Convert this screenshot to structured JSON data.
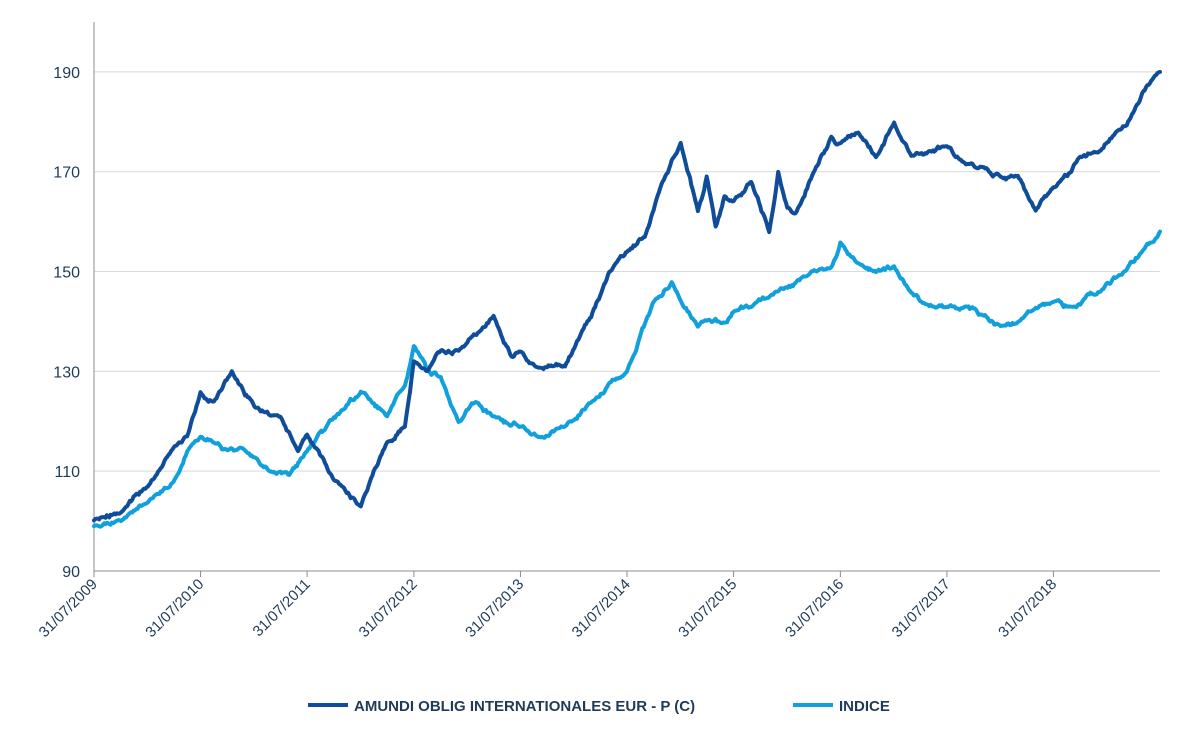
{
  "chart_data": {
    "type": "line",
    "title": "",
    "xlabel": "",
    "ylabel": "",
    "ylim": [
      90,
      200
    ],
    "y_ticks": [
      "90",
      "110",
      "130",
      "150",
      "170",
      "190"
    ],
    "x_ticks": [
      "31/07/2009",
      "31/07/2010",
      "31/07/2011",
      "31/07/2012",
      "31/07/2013",
      "31/07/2014",
      "31/07/2015",
      "31/07/2016",
      "31/07/2017",
      "31/07/2018"
    ],
    "x_range": [
      "2009-07-31",
      "2019-07-31"
    ],
    "grid": "horizontal",
    "legend_position": "bottom",
    "colors": {
      "series1": "#0f4c99",
      "series2": "#11a0dc",
      "axis": "#8c8c8c",
      "grid": "#d9d9d9",
      "text": "#1f3b57"
    },
    "series": [
      {
        "name": "AMUNDI OBLIG INTERNATIONALES EUR - P (C)",
        "x": [
          "2009-07-31",
          "2009-10-31",
          "2010-01-31",
          "2010-04-30",
          "2010-06-15",
          "2010-07-31",
          "2010-09-15",
          "2010-11-15",
          "2011-01-31",
          "2011-04-30",
          "2011-06-30",
          "2011-07-31",
          "2011-10-31",
          "2012-01-31",
          "2012-03-15",
          "2012-04-30",
          "2012-06-30",
          "2012-07-31",
          "2012-09-15",
          "2012-10-31",
          "2012-12-31",
          "2013-03-15",
          "2013-04-30",
          "2013-06-30",
          "2013-07-31",
          "2013-09-30",
          "2013-12-31",
          "2014-02-28",
          "2014-04-30",
          "2014-05-31",
          "2014-07-31",
          "2014-09-30",
          "2014-11-30",
          "2015-01-31",
          "2015-03-31",
          "2015-04-30",
          "2015-05-31",
          "2015-06-30",
          "2015-07-31",
          "2015-09-30",
          "2015-11-30",
          "2015-12-31",
          "2016-01-31",
          "2016-02-28",
          "2016-04-30",
          "2016-06-30",
          "2016-07-31",
          "2016-09-30",
          "2016-11-30",
          "2017-01-31",
          "2017-03-31",
          "2017-05-31",
          "2017-07-31",
          "2017-09-30",
          "2017-11-30",
          "2018-01-31",
          "2018-03-31",
          "2018-05-31",
          "2018-07-31",
          "2018-09-30",
          "2018-10-31",
          "2018-12-31",
          "2019-02-28",
          "2019-04-30",
          "2019-05-31",
          "2019-07-31"
        ],
        "values": [
          100,
          102,
          107,
          115,
          117,
          126,
          124,
          130,
          123,
          121,
          114,
          117,
          108,
          103,
          110,
          116,
          119,
          132,
          130,
          134,
          134,
          138,
          141,
          133,
          134,
          131,
          131,
          138,
          145,
          150,
          154,
          157,
          168,
          176,
          162,
          169,
          159,
          165,
          164,
          168,
          158,
          170,
          163,
          162,
          170,
          177,
          176,
          178,
          173,
          180,
          173,
          174,
          175,
          172,
          171,
          169,
          169,
          162,
          167,
          170,
          173,
          174,
          178,
          182,
          186,
          190
        ]
      },
      {
        "name": "INDICE",
        "x": [
          "2009-07-31",
          "2009-10-31",
          "2010-01-31",
          "2010-04-30",
          "2010-06-15",
          "2010-07-31",
          "2010-09-15",
          "2010-10-31",
          "2010-12-31",
          "2011-03-31",
          "2011-05-31",
          "2011-07-31",
          "2011-09-30",
          "2011-11-30",
          "2012-01-31",
          "2012-04-30",
          "2012-06-30",
          "2012-07-31",
          "2012-09-15",
          "2012-10-31",
          "2012-12-31",
          "2013-02-28",
          "2013-04-30",
          "2013-06-30",
          "2013-07-31",
          "2013-09-30",
          "2013-12-31",
          "2014-03-31",
          "2014-07-31",
          "2014-10-31",
          "2014-12-31",
          "2015-03-31",
          "2015-04-30",
          "2015-06-30",
          "2015-07-31",
          "2015-09-30",
          "2015-11-30",
          "2016-03-31",
          "2016-06-30",
          "2016-07-31",
          "2016-09-30",
          "2016-11-30",
          "2017-01-31",
          "2017-03-31",
          "2017-05-31",
          "2017-07-31",
          "2017-09-30",
          "2017-11-30",
          "2018-01-31",
          "2018-03-31",
          "2018-05-31",
          "2018-07-31",
          "2018-09-30",
          "2018-12-31",
          "2019-03-31",
          "2019-05-31",
          "2019-07-31"
        ],
        "values": [
          99,
          100,
          104,
          108,
          114,
          117,
          116,
          114,
          114,
          110,
          109,
          114,
          118,
          122,
          126,
          121,
          127,
          135,
          130,
          129,
          120,
          124,
          121,
          119,
          119,
          117,
          119,
          124,
          130,
          144,
          148,
          139,
          140,
          140,
          142,
          143,
          145,
          149,
          151,
          156,
          152,
          150,
          151,
          146,
          143,
          143,
          143,
          141,
          139,
          140,
          143,
          144,
          143,
          146,
          150,
          154,
          158
        ]
      }
    ]
  }
}
